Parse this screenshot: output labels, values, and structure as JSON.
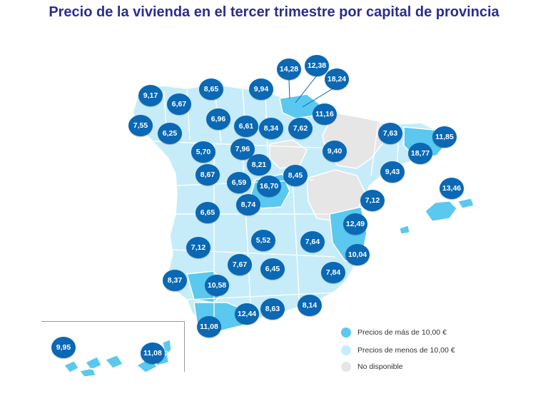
{
  "title": "Precio de la vivienda en el tercer trimestre por capital de provincia",
  "colors": {
    "above_10": "#5ac8ef",
    "below_10": "#c6ecf9",
    "not_available": "#e6e6e6",
    "bubble": "#0a68b4",
    "title": "#2b2d8f",
    "border": "#ffffff"
  },
  "legend": [
    {
      "label": "Precios de más de 10,00 €",
      "color": "#5ac8ef"
    },
    {
      "label": "Precios de menos de 10,00 €",
      "color": "#c6ecf9"
    },
    {
      "label": "No disponible",
      "color": "#e6e6e6"
    }
  ],
  "prices": [
    "9,17",
    "8,65",
    "9,94",
    "14,28",
    "12,38",
    "18,24",
    "6,67",
    "6,96",
    "11,16",
    "7,55",
    "6,25",
    "6,61",
    "8,34",
    "7,62",
    "7,63",
    "11,85",
    "18,77",
    "5,70",
    "7,96",
    "9,40",
    "8,21",
    "9,43",
    "8,67",
    "6,59",
    "16,70",
    "8,45",
    "13,46",
    "8,74",
    "7,12",
    "6,65",
    "12,49",
    "5,52",
    "7,64",
    "7,12",
    "10,04",
    "7,67",
    "6,45",
    "8,37",
    "10,58",
    "7,84",
    "8,63",
    "8,14",
    "12,44",
    "11,08",
    "9,95",
    "11,08"
  ]
}
